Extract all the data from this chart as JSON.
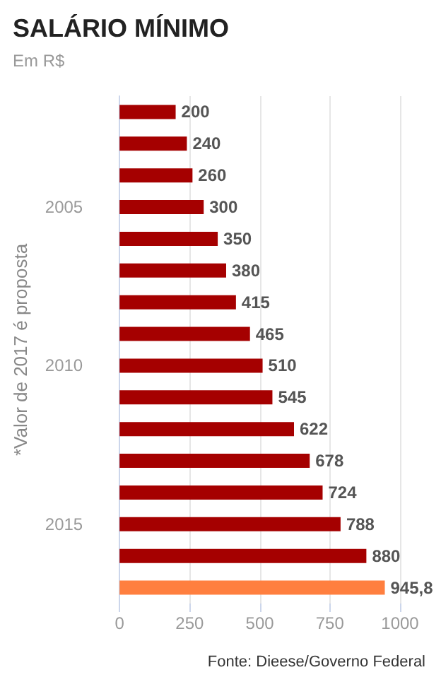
{
  "chart_data": {
    "type": "bar",
    "orientation": "horizontal",
    "title": "SALÁRIO MÍNIMO",
    "subtitle": "Em R$",
    "ylabel": "*Valor de 2017 é proposta",
    "annotations": [
      "Fonte: Dieese/Governo Federal"
    ],
    "categories": [
      null,
      null,
      null,
      "2005",
      null,
      null,
      null,
      null,
      "2010",
      null,
      null,
      null,
      null,
      "2015",
      null,
      null
    ],
    "values": [
      200,
      240,
      260,
      300,
      350,
      380,
      415,
      465,
      510,
      545,
      622,
      678,
      724,
      788,
      880,
      945.8
    ],
    "value_labels": [
      "200",
      "240",
      "260",
      "300",
      "350",
      "380",
      "415",
      "465",
      "510",
      "545",
      "622",
      "678",
      "724",
      "788",
      "880",
      "945,8"
    ],
    "colors": [
      "#a50000",
      "#a50000",
      "#a50000",
      "#a50000",
      "#a50000",
      "#a50000",
      "#a50000",
      "#a50000",
      "#a50000",
      "#a50000",
      "#a50000",
      "#a50000",
      "#a50000",
      "#a50000",
      "#a50000",
      "#ff7f3f"
    ],
    "xlim": [
      0,
      1000
    ],
    "xticks": [
      0,
      250,
      500,
      750,
      1000
    ],
    "grid": "x"
  }
}
